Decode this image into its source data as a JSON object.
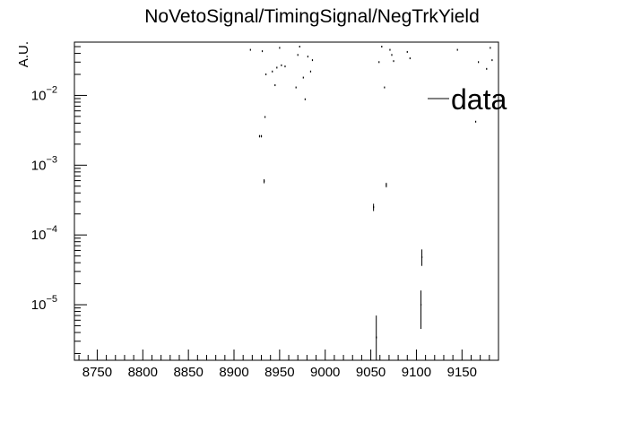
{
  "chart_data": {
    "type": "scatter",
    "title": "NoVetoSignal/TimingSignal/NegTrkYield",
    "xlabel": "",
    "ylabel": "A.U.",
    "xlim": [
      8725,
      9190
    ],
    "ylim": [
      1.6e-06,
      0.058
    ],
    "yscale": "log",
    "grid": false,
    "legend_position": "top-right",
    "x_ticks": [
      {
        "value": 8750,
        "label": "8750"
      },
      {
        "value": 8800,
        "label": "8800"
      },
      {
        "value": 8850,
        "label": "8850"
      },
      {
        "value": 8900,
        "label": "8900"
      },
      {
        "value": 8950,
        "label": "8950"
      },
      {
        "value": 9000,
        "label": "9000"
      },
      {
        "value": 9050,
        "label": "9050"
      },
      {
        "value": 9100,
        "label": "9100"
      },
      {
        "value": 9150,
        "label": "9150"
      }
    ],
    "y_ticks": [
      {
        "value": 1e-05,
        "base": "10",
        "exp": "−5"
      },
      {
        "value": 0.0001,
        "base": "10",
        "exp": "−4"
      },
      {
        "value": 0.001,
        "base": "10",
        "exp": "−3"
      },
      {
        "value": 0.01,
        "base": "10",
        "exp": "−2"
      }
    ],
    "series": [
      {
        "name": "data",
        "color": "#000000",
        "points": [
          {
            "x": 8918,
            "y": 0.045
          },
          {
            "x": 8928,
            "y": 0.0026,
            "ylo": 0.0025,
            "yhi": 0.0027
          },
          {
            "x": 8930,
            "y": 0.0026,
            "ylo": 0.0025,
            "yhi": 0.0027
          },
          {
            "x": 8931,
            "y": 0.043
          },
          {
            "x": 8933,
            "y": 0.00059,
            "ylo": 0.00055,
            "yhi": 0.00063
          },
          {
            "x": 8934,
            "y": 0.0049
          },
          {
            "x": 8935,
            "y": 0.02
          },
          {
            "x": 8942,
            "y": 0.022
          },
          {
            "x": 8945,
            "y": 0.014
          },
          {
            "x": 8947,
            "y": 0.025
          },
          {
            "x": 8950,
            "y": 0.048
          },
          {
            "x": 8952,
            "y": 0.027
          },
          {
            "x": 8956,
            "y": 0.026
          },
          {
            "x": 8968,
            "y": 0.013
          },
          {
            "x": 8970,
            "y": 0.038
          },
          {
            "x": 8972,
            "y": 0.05
          },
          {
            "x": 8976,
            "y": 0.018
          },
          {
            "x": 8978,
            "y": 0.0088
          },
          {
            "x": 8981,
            "y": 0.036
          },
          {
            "x": 8984,
            "y": 0.022
          },
          {
            "x": 8986,
            "y": 0.032
          },
          {
            "x": 9053,
            "y": 0.00025,
            "ylo": 0.00022,
            "yhi": 0.00028
          },
          {
            "x": 9056,
            "y": 3.4e-06,
            "ylo": 1.6e-06,
            "yhi": 7e-06
          },
          {
            "x": 9059,
            "y": 0.03
          },
          {
            "x": 9062,
            "y": 0.05
          },
          {
            "x": 9065,
            "y": 0.013
          },
          {
            "x": 9067,
            "y": 0.00052,
            "ylo": 0.00048,
            "yhi": 0.00056
          },
          {
            "x": 9071,
            "y": 0.045
          },
          {
            "x": 9073,
            "y": 0.038
          },
          {
            "x": 9075,
            "y": 0.031
          },
          {
            "x": 9090,
            "y": 0.042
          },
          {
            "x": 9093,
            "y": 0.034
          },
          {
            "x": 9105,
            "y": 1e-05,
            "ylo": 4.5e-06,
            "yhi": 1.6e-05
          },
          {
            "x": 9106,
            "y": 4.8e-05,
            "ylo": 3.6e-05,
            "yhi": 6.2e-05
          },
          {
            "x": 9145,
            "y": 0.045
          },
          {
            "x": 9165,
            "y": 0.0042
          },
          {
            "x": 9168,
            "y": 0.03
          },
          {
            "x": 9177,
            "y": 0.024
          },
          {
            "x": 9181,
            "y": 0.048
          },
          {
            "x": 9183,
            "y": 0.032
          }
        ]
      }
    ]
  }
}
